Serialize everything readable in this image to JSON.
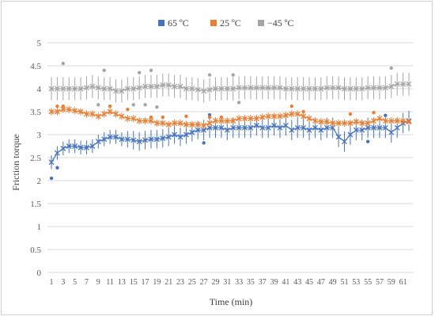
{
  "chart_data": {
    "type": "line",
    "xlabel": "Time (min)",
    "ylabel": "Friction torque",
    "xlim": [
      1,
      62
    ],
    "ylim": [
      0,
      5
    ],
    "y_ticks": [
      0,
      0.5,
      1,
      1.5,
      2,
      2.5,
      3,
      3.5,
      4,
      4.5,
      5
    ],
    "y_tick_labels": [
      "0",
      "0.5",
      "1",
      "1.5",
      "2",
      "2.5",
      "3",
      "3.5",
      "4",
      "4.5",
      "5"
    ],
    "x_tick_labels": [
      "1",
      "3",
      "5",
      "7",
      "9",
      "11",
      "13",
      "15",
      "17",
      "19",
      "21",
      "23",
      "25",
      "27",
      "29",
      "31",
      "33",
      "35",
      "37",
      "39",
      "41",
      "43",
      "45",
      "47",
      "49",
      "51",
      "53",
      "55",
      "57",
      "59",
      "61"
    ],
    "grid": true,
    "legend_position": "top",
    "x": [
      1,
      2,
      3,
      4,
      5,
      6,
      7,
      8,
      9,
      10,
      11,
      12,
      13,
      14,
      15,
      16,
      17,
      18,
      19,
      20,
      21,
      22,
      23,
      24,
      25,
      26,
      27,
      28,
      29,
      30,
      31,
      32,
      33,
      34,
      35,
      36,
      37,
      38,
      39,
      40,
      41,
      42,
      43,
      44,
      45,
      46,
      47,
      48,
      49,
      50,
      51,
      52,
      53,
      54,
      55,
      56,
      57,
      58,
      59,
      60,
      61,
      62
    ],
    "series": [
      {
        "name": "65 ºC",
        "color": "#4472C4",
        "values": [
          2.4,
          2.6,
          2.7,
          2.75,
          2.75,
          2.72,
          2.72,
          2.75,
          2.85,
          2.9,
          2.95,
          2.95,
          2.9,
          2.9,
          2.88,
          2.85,
          2.88,
          2.9,
          2.9,
          2.92,
          2.95,
          3.0,
          2.95,
          3.0,
          3.05,
          3.1,
          3.1,
          3.15,
          3.15,
          3.15,
          3.1,
          3.15,
          3.15,
          3.15,
          3.15,
          3.2,
          3.15,
          3.15,
          3.2,
          3.15,
          3.2,
          3.1,
          3.15,
          3.15,
          3.1,
          3.15,
          3.1,
          3.15,
          3.15,
          2.95,
          2.85,
          3.0,
          3.1,
          3.1,
          3.15,
          3.15,
          3.15,
          3.15,
          3.05,
          3.15,
          3.25,
          3.3
        ],
        "error": [
          0.15,
          0.15,
          0.15,
          0.15,
          0.15,
          0.15,
          0.15,
          0.15,
          0.15,
          0.15,
          0.15,
          0.15,
          0.15,
          0.18,
          0.2,
          0.2,
          0.2,
          0.2,
          0.2,
          0.2,
          0.2,
          0.2,
          0.2,
          0.2,
          0.2,
          0.2,
          0.22,
          0.22,
          0.22,
          0.22,
          0.22,
          0.22,
          0.22,
          0.22,
          0.22,
          0.22,
          0.22,
          0.22,
          0.22,
          0.22,
          0.22,
          0.22,
          0.22,
          0.22,
          0.22,
          0.22,
          0.22,
          0.22,
          0.22,
          0.22,
          0.22,
          0.22,
          0.22,
          0.22,
          0.22,
          0.22,
          0.22,
          0.22,
          0.22,
          0.22,
          0.22,
          0.22
        ],
        "outliers": [
          [
            1,
            2.05
          ],
          [
            2,
            2.28
          ],
          [
            27,
            2.82
          ],
          [
            28,
            3.43
          ],
          [
            55,
            2.85
          ],
          [
            58,
            3.42
          ]
        ]
      },
      {
        "name": "25 ºC",
        "color": "#ED7D31",
        "values": [
          3.5,
          3.5,
          3.55,
          3.55,
          3.52,
          3.5,
          3.45,
          3.45,
          3.4,
          3.45,
          3.5,
          3.45,
          3.4,
          3.35,
          3.35,
          3.3,
          3.3,
          3.3,
          3.25,
          3.25,
          3.22,
          3.25,
          3.25,
          3.22,
          3.22,
          3.22,
          3.2,
          3.25,
          3.3,
          3.3,
          3.3,
          3.3,
          3.35,
          3.35,
          3.35,
          3.35,
          3.38,
          3.4,
          3.4,
          3.4,
          3.42,
          3.45,
          3.45,
          3.4,
          3.35,
          3.3,
          3.28,
          3.28,
          3.25,
          3.25,
          3.25,
          3.25,
          3.28,
          3.25,
          3.25,
          3.3,
          3.35,
          3.3,
          3.3,
          3.3,
          3.3,
          3.28
        ],
        "error": [
          0.08,
          0.08,
          0.08,
          0.08,
          0.08,
          0.08,
          0.08,
          0.08,
          0.08,
          0.08,
          0.08,
          0.08,
          0.08,
          0.08,
          0.08,
          0.08,
          0.08,
          0.08,
          0.08,
          0.08,
          0.08,
          0.08,
          0.08,
          0.08,
          0.08,
          0.08,
          0.08,
          0.08,
          0.08,
          0.08,
          0.08,
          0.08,
          0.08,
          0.08,
          0.08,
          0.08,
          0.08,
          0.08,
          0.08,
          0.08,
          0.08,
          0.08,
          0.08,
          0.08,
          0.08,
          0.08,
          0.08,
          0.08,
          0.08,
          0.08,
          0.08,
          0.08,
          0.08,
          0.08,
          0.08,
          0.08,
          0.08,
          0.08,
          0.08,
          0.08,
          0.08,
          0.08
        ],
        "outliers": [
          [
            2,
            3.62
          ],
          [
            3,
            3.62
          ],
          [
            11,
            3.62
          ],
          [
            14,
            3.55
          ],
          [
            18,
            3.38
          ],
          [
            20,
            3.38
          ],
          [
            24,
            3.4
          ],
          [
            28,
            3.38
          ],
          [
            30,
            3.38
          ],
          [
            42,
            3.62
          ],
          [
            44,
            3.5
          ],
          [
            52,
            3.45
          ],
          [
            56,
            3.48
          ]
        ]
      },
      {
        "name": "−45 ºC",
        "color": "#A5A5A5",
        "values": [
          4.0,
          4.0,
          4.0,
          4.0,
          4.0,
          4.0,
          4.02,
          4.05,
          4.02,
          4.0,
          4.0,
          3.95,
          3.95,
          4.0,
          4.0,
          4.02,
          4.05,
          4.05,
          4.05,
          4.08,
          4.08,
          4.05,
          4.05,
          4.0,
          4.0,
          3.98,
          3.95,
          3.98,
          4.0,
          4.0,
          4.0,
          4.0,
          4.02,
          4.02,
          4.02,
          4.02,
          4.02,
          4.02,
          4.02,
          4.02,
          4.0,
          4.0,
          4.0,
          4.0,
          4.0,
          4.0,
          4.0,
          4.02,
          4.02,
          4.02,
          4.0,
          4.0,
          4.0,
          4.0,
          4.02,
          4.02,
          4.02,
          4.02,
          4.05,
          4.1,
          4.1,
          4.1
        ],
        "error": [
          0.25,
          0.25,
          0.25,
          0.25,
          0.25,
          0.25,
          0.25,
          0.25,
          0.25,
          0.25,
          0.25,
          0.25,
          0.25,
          0.25,
          0.25,
          0.25,
          0.25,
          0.25,
          0.25,
          0.25,
          0.25,
          0.25,
          0.25,
          0.25,
          0.25,
          0.25,
          0.25,
          0.25,
          0.25,
          0.25,
          0.25,
          0.25,
          0.25,
          0.25,
          0.25,
          0.25,
          0.25,
          0.25,
          0.25,
          0.25,
          0.25,
          0.25,
          0.25,
          0.25,
          0.25,
          0.25,
          0.25,
          0.25,
          0.25,
          0.25,
          0.25,
          0.25,
          0.25,
          0.25,
          0.25,
          0.25,
          0.25,
          0.25,
          0.25,
          0.25,
          0.25,
          0.25
        ],
        "outliers": [
          [
            3,
            4.55
          ],
          [
            9,
            3.65
          ],
          [
            10,
            4.4
          ],
          [
            15,
            3.65
          ],
          [
            16,
            4.35
          ],
          [
            17,
            3.65
          ],
          [
            18,
            4.4
          ],
          [
            19,
            3.6
          ],
          [
            28,
            4.3
          ],
          [
            32,
            4.3
          ],
          [
            33,
            3.7
          ],
          [
            59,
            4.45
          ]
        ]
      }
    ]
  }
}
